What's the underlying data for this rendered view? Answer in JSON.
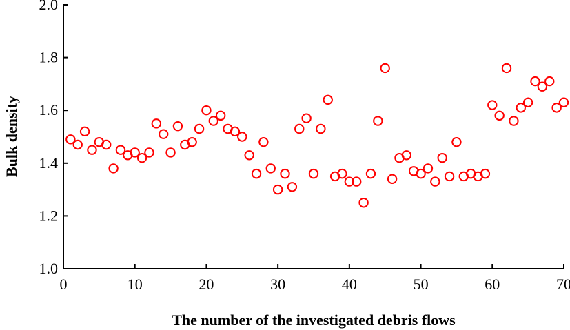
{
  "chart_data": {
    "type": "scatter",
    "title": "",
    "xlabel": "The number of the investigated debris flows",
    "ylabel": "Bulk density",
    "xlim": [
      0,
      70
    ],
    "ylim": [
      1.0,
      2.0
    ],
    "xticks": [
      "0",
      "10",
      "20",
      "30",
      "40",
      "50",
      "60",
      "70"
    ],
    "yticks": [
      "1.0",
      "1.2",
      "1.4",
      "1.6",
      "1.8",
      "2.0"
    ],
    "grid": false,
    "marker": "open-circle",
    "marker_color": "#ff0000",
    "series": [
      {
        "x": [
          1,
          2,
          3,
          4,
          5,
          6,
          7,
          8,
          9,
          10,
          11,
          12,
          13,
          14,
          15,
          16,
          17,
          18,
          19,
          20,
          21,
          22,
          23,
          24,
          25,
          26,
          27,
          28,
          29,
          30,
          31,
          32,
          33,
          34,
          35,
          36,
          37,
          38,
          39,
          40,
          41,
          42,
          43,
          44,
          45,
          46,
          47,
          48,
          49,
          50,
          51,
          52,
          53,
          54,
          55,
          56,
          57,
          58,
          59,
          60,
          61,
          62,
          63,
          64,
          65,
          66,
          67,
          68,
          69,
          70
        ],
        "y": [
          1.49,
          1.47,
          1.52,
          1.45,
          1.48,
          1.47,
          1.38,
          1.45,
          1.43,
          1.44,
          1.42,
          1.44,
          1.55,
          1.51,
          1.44,
          1.54,
          1.47,
          1.48,
          1.53,
          1.6,
          1.56,
          1.58,
          1.53,
          1.52,
          1.5,
          1.43,
          1.36,
          1.48,
          1.38,
          1.3,
          1.36,
          1.31,
          1.53,
          1.57,
          1.36,
          1.53,
          1.64,
          1.35,
          1.36,
          1.33,
          1.33,
          1.25,
          1.36,
          1.56,
          1.76,
          1.34,
          1.42,
          1.43,
          1.37,
          1.36,
          1.38,
          1.33,
          1.42,
          1.35,
          1.48,
          1.35,
          1.36,
          1.35,
          1.36,
          1.62,
          1.58,
          1.76,
          1.56,
          1.61,
          1.63,
          1.71,
          1.69,
          1.71,
          1.61,
          1.63
        ]
      }
    ]
  }
}
